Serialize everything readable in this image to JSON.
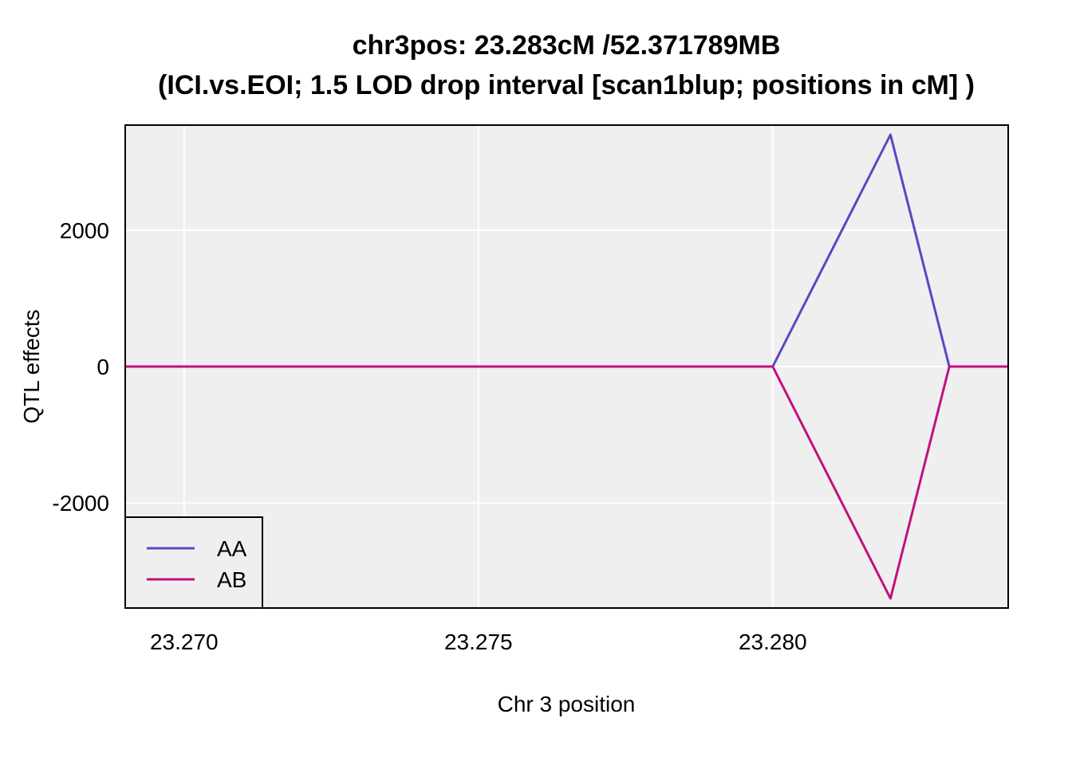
{
  "chart_data": {
    "type": "line",
    "title_line1": "chr3pos: 23.283cM /52.371789MB",
    "title_line2": "(ICI.vs.EOI; 1.5 LOD drop interval [scan1blup; positions in cM] )",
    "xlabel": "Chr 3 position",
    "ylabel": "QTL effects",
    "xlim": [
      23.269,
      23.284
    ],
    "ylim": [
      -3540,
      3540
    ],
    "x_ticks": [
      23.27,
      23.275,
      23.28
    ],
    "x_tick_labels": [
      "23.270",
      "23.275",
      "23.280"
    ],
    "y_ticks": [
      -2000,
      0,
      2000
    ],
    "y_tick_labels": [
      "-2000",
      "0",
      "2000"
    ],
    "grid": true,
    "legend_position": "bottom-left",
    "series": [
      {
        "name": "AA",
        "color": "#5a47c4",
        "x": [
          23.269,
          23.28,
          23.282,
          23.283,
          23.284
        ],
        "y": [
          0,
          0,
          3400,
          0,
          0
        ]
      },
      {
        "name": "AB",
        "color": "#c0107f",
        "x": [
          23.269,
          23.28,
          23.282,
          23.283,
          23.284
        ],
        "y": [
          0,
          0,
          -3400,
          0,
          0
        ]
      }
    ]
  }
}
